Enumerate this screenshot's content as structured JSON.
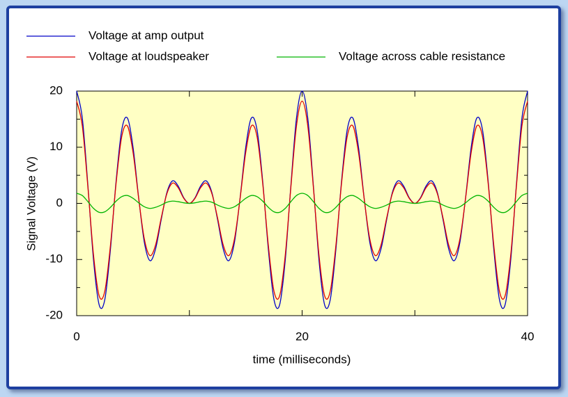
{
  "chart_data": {
    "type": "line",
    "x_label": "time (milliseconds)",
    "y_label": "Signal Voltage (V)",
    "x": [
      0,
      0.5,
      1,
      1.5,
      2,
      2.5,
      3,
      3.5,
      4,
      4.5,
      5,
      5.5,
      6,
      6.5,
      7,
      7.5,
      8,
      8.5,
      9,
      9.5,
      10,
      10.5,
      11,
      11.5,
      12,
      12.5,
      13,
      13.5,
      14,
      14.5,
      15,
      15.5,
      16,
      16.5,
      17,
      17.5,
      18,
      18.5,
      19,
      19.5,
      20,
      20.5,
      21,
      21.5,
      22,
      22.5,
      23,
      23.5,
      24,
      24.5,
      25,
      25.5,
      26,
      26.5,
      27,
      27.5,
      28,
      28.5,
      29,
      29.5,
      30,
      30.5,
      31,
      31.5,
      32,
      32.5,
      33,
      33.5,
      34,
      34.5,
      35,
      35.5,
      36,
      36.5,
      37,
      37.5,
      38,
      38.5,
      39,
      39.5,
      40
    ],
    "series": [
      {
        "name": "Voltage at amp output",
        "color": "#0000c8",
        "values": [
          20,
          15.2,
          3.1,
          -10.2,
          -18.1,
          -17.1,
          -8.1,
          4,
          13.1,
          15.2,
          10,
          1,
          -6.9,
          -10.2,
          -8.1,
          -2.9,
          1.9,
          4,
          3.1,
          1,
          0,
          1,
          3.1,
          4,
          1.9,
          -2.9,
          -8.1,
          -10.2,
          -6.9,
          1,
          10,
          15.2,
          13.1,
          4,
          -8.1,
          -17.1,
          -18.1,
          -10.2,
          3.1,
          15.2,
          20,
          15.2,
          3.1,
          -10.2,
          -18.1,
          -17.1,
          -8.1,
          4,
          13.1,
          15.2,
          10,
          1,
          -6.9,
          -10.2,
          -8.1,
          -2.9,
          1.9,
          4,
          3.1,
          1,
          0,
          1,
          3.1,
          4,
          1.9,
          -2.9,
          -8.1,
          -10.2,
          -6.9,
          1,
          10,
          15.2,
          13.1,
          4,
          -8.1,
          -17.1,
          -18.1,
          -10.2,
          3.1,
          15.2,
          20
        ]
      },
      {
        "name": "Voltage at loudspeaker",
        "color": "#e00000",
        "values": [
          18.2,
          13.8,
          2.8,
          -9.3,
          -16.5,
          -15.6,
          -7.4,
          3.6,
          11.9,
          13.8,
          9.1,
          0.9,
          -6.3,
          -9.3,
          -7.4,
          -2.6,
          1.7,
          3.6,
          2.8,
          0.9,
          0,
          0.9,
          2.8,
          3.6,
          1.7,
          -2.6,
          -7.4,
          -9.3,
          -6.3,
          0.9,
          9.1,
          13.8,
          11.9,
          3.6,
          -7.4,
          -15.6,
          -16.5,
          -9.3,
          2.8,
          13.8,
          18.2,
          13.8,
          2.8,
          -9.3,
          -16.5,
          -15.6,
          -7.4,
          3.6,
          11.9,
          13.8,
          9.1,
          0.9,
          -6.3,
          -9.3,
          -7.4,
          -2.6,
          1.7,
          3.6,
          2.8,
          0.9,
          0,
          0.9,
          2.8,
          3.6,
          1.7,
          -2.6,
          -7.4,
          -9.3,
          -6.3,
          0.9,
          9.1,
          13.8,
          11.9,
          3.6,
          -7.4,
          -15.6,
          -16.5,
          -9.3,
          2.8,
          13.8,
          18.2
        ]
      },
      {
        "name": "Voltage across cable resistance",
        "color": "#00b400",
        "values": [
          1.8,
          1.4,
          0.3,
          -0.9,
          -1.6,
          -1.5,
          -0.7,
          0.4,
          1.2,
          1.4,
          0.9,
          0.1,
          -0.6,
          -0.9,
          -0.7,
          -0.3,
          0.2,
          0.4,
          0.3,
          0.1,
          0,
          0.1,
          0.3,
          0.4,
          0.2,
          -0.3,
          -0.7,
          -0.9,
          -0.6,
          0.1,
          0.9,
          1.4,
          1.2,
          0.4,
          -0.7,
          -1.5,
          -1.6,
          -0.9,
          0.3,
          1.4,
          1.8,
          1.4,
          0.3,
          -0.9,
          -1.6,
          -1.5,
          -0.7,
          0.4,
          1.2,
          1.4,
          0.9,
          0.1,
          -0.6,
          -0.9,
          -0.7,
          -0.3,
          0.2,
          0.4,
          0.3,
          0.1,
          0,
          0.1,
          0.3,
          0.4,
          0.2,
          -0.3,
          -0.7,
          -0.9,
          -0.6,
          0.1,
          0.9,
          1.4,
          1.2,
          0.4,
          -0.7,
          -1.5,
          -1.6,
          -0.9,
          0.3,
          1.4,
          1.8
        ]
      }
    ],
    "xlim": [
      0,
      40
    ],
    "xticks": [
      0,
      20,
      40
    ],
    "xminorticks": [
      10,
      30
    ],
    "ylim": [
      -20,
      20
    ],
    "yticks": [
      -20,
      -10,
      0,
      10,
      20
    ],
    "yminorticks": [
      -15,
      -5,
      5,
      15
    ],
    "plot_background": "#ffffc4"
  }
}
